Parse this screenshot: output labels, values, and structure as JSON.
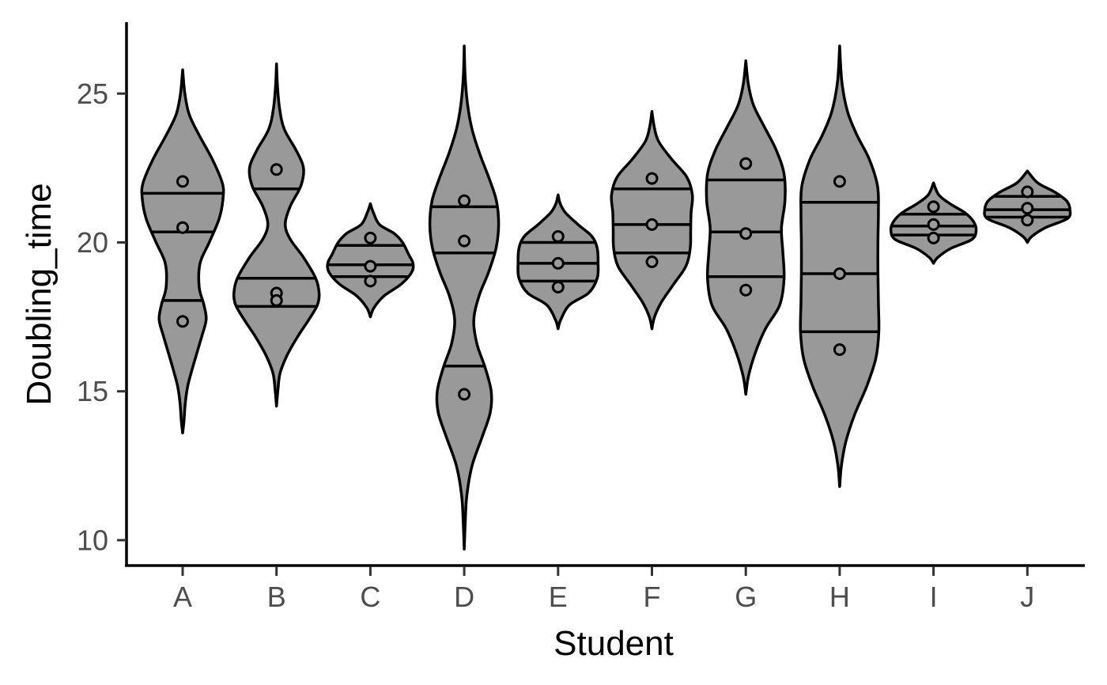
{
  "chart_data": {
    "type": "violin",
    "xlabel": "Student",
    "ylabel": "Doubling_time",
    "ylim": [
      9.2,
      27.4
    ],
    "y_ticks": [
      10,
      15,
      20,
      25
    ],
    "grid": false,
    "legend": "none",
    "colors": {
      "fill": "#999999",
      "outline": "#000000",
      "point_fill": "#999999"
    },
    "categories": [
      "A",
      "B",
      "C",
      "D",
      "E",
      "F",
      "G",
      "H",
      "I",
      "J"
    ],
    "groups": [
      {
        "category": "A",
        "points": [
          22.05,
          20.5,
          17.35
        ],
        "quantiles": [
          18.05,
          20.35,
          21.65
        ],
        "range": [
          13.6,
          25.8
        ],
        "density": [
          [
            13.6,
            0.0
          ],
          [
            14.0,
            0.03
          ],
          [
            14.6,
            0.06
          ],
          [
            15.2,
            0.12
          ],
          [
            16.0,
            0.27
          ],
          [
            16.8,
            0.43
          ],
          [
            17.4,
            0.54
          ],
          [
            17.9,
            0.49
          ],
          [
            18.5,
            0.38
          ],
          [
            19.3,
            0.4
          ],
          [
            20.0,
            0.61
          ],
          [
            20.8,
            0.84
          ],
          [
            21.5,
            0.93
          ],
          [
            22.0,
            0.91
          ],
          [
            22.8,
            0.68
          ],
          [
            23.6,
            0.38
          ],
          [
            24.3,
            0.15
          ],
          [
            25.0,
            0.05
          ],
          [
            25.8,
            0.0
          ]
        ]
      },
      {
        "category": "B",
        "points": [
          22.45,
          18.3,
          18.05
        ],
        "quantiles": [
          17.85,
          18.8,
          21.8
        ],
        "range": [
          14.5,
          26.0
        ],
        "density": [
          [
            14.5,
            0.0
          ],
          [
            15.0,
            0.03
          ],
          [
            15.6,
            0.08
          ],
          [
            16.2,
            0.24
          ],
          [
            16.8,
            0.47
          ],
          [
            17.4,
            0.74
          ],
          [
            17.9,
            0.94
          ],
          [
            18.3,
            0.98
          ],
          [
            18.8,
            0.9
          ],
          [
            19.5,
            0.62
          ],
          [
            20.1,
            0.32
          ],
          [
            20.6,
            0.2
          ],
          [
            21.2,
            0.31
          ],
          [
            21.9,
            0.56
          ],
          [
            22.5,
            0.62
          ],
          [
            23.1,
            0.45
          ],
          [
            23.8,
            0.18
          ],
          [
            24.5,
            0.07
          ],
          [
            25.3,
            0.02
          ],
          [
            26.0,
            0.0
          ]
        ]
      },
      {
        "category": "C",
        "points": [
          20.15,
          19.2,
          18.7
        ],
        "quantiles": [
          18.85,
          19.25,
          19.9
        ],
        "range": [
          17.5,
          21.3
        ],
        "density": [
          [
            17.5,
            0.0
          ],
          [
            17.8,
            0.08
          ],
          [
            18.2,
            0.31
          ],
          [
            18.6,
            0.71
          ],
          [
            19.0,
            0.95
          ],
          [
            19.3,
            0.98
          ],
          [
            19.6,
            0.88
          ],
          [
            20.0,
            0.74
          ],
          [
            20.3,
            0.55
          ],
          [
            20.6,
            0.21
          ],
          [
            21.0,
            0.07
          ],
          [
            21.3,
            0.0
          ]
        ]
      },
      {
        "category": "D",
        "points": [
          21.4,
          20.05,
          14.9
        ],
        "quantiles": [
          15.85,
          19.65,
          21.2
        ],
        "range": [
          9.7,
          26.6
        ],
        "density": [
          [
            9.7,
            0.0
          ],
          [
            10.5,
            0.02
          ],
          [
            11.5,
            0.06
          ],
          [
            12.5,
            0.18
          ],
          [
            13.5,
            0.42
          ],
          [
            14.3,
            0.6
          ],
          [
            15.0,
            0.62
          ],
          [
            15.8,
            0.48
          ],
          [
            16.6,
            0.29
          ],
          [
            17.4,
            0.22
          ],
          [
            18.2,
            0.34
          ],
          [
            19.0,
            0.56
          ],
          [
            19.8,
            0.73
          ],
          [
            20.6,
            0.79
          ],
          [
            21.4,
            0.74
          ],
          [
            22.2,
            0.56
          ],
          [
            23.0,
            0.35
          ],
          [
            23.8,
            0.18
          ],
          [
            24.6,
            0.08
          ],
          [
            25.6,
            0.02
          ],
          [
            26.6,
            0.0
          ]
        ]
      },
      {
        "category": "E",
        "points": [
          20.2,
          19.3,
          18.5
        ],
        "quantiles": [
          18.7,
          19.3,
          20.0
        ],
        "range": [
          17.1,
          21.6
        ],
        "density": [
          [
            17.1,
            0.0
          ],
          [
            17.4,
            0.06
          ],
          [
            17.9,
            0.26
          ],
          [
            18.3,
            0.7
          ],
          [
            18.8,
            0.9
          ],
          [
            19.3,
            0.92
          ],
          [
            19.8,
            0.9
          ],
          [
            20.2,
            0.78
          ],
          [
            20.6,
            0.46
          ],
          [
            21.0,
            0.17
          ],
          [
            21.3,
            0.05
          ],
          [
            21.6,
            0.0
          ]
        ]
      },
      {
        "category": "F",
        "points": [
          22.15,
          20.6,
          19.35
        ],
        "quantiles": [
          19.65,
          20.6,
          21.8
        ],
        "range": [
          17.1,
          24.4
        ],
        "density": [
          [
            17.1,
            0.0
          ],
          [
            17.5,
            0.06
          ],
          [
            18.0,
            0.22
          ],
          [
            18.6,
            0.5
          ],
          [
            19.2,
            0.78
          ],
          [
            19.8,
            0.88
          ],
          [
            20.4,
            0.89
          ],
          [
            21.0,
            0.9
          ],
          [
            21.6,
            0.93
          ],
          [
            22.2,
            0.8
          ],
          [
            22.8,
            0.45
          ],
          [
            23.4,
            0.15
          ],
          [
            23.9,
            0.05
          ],
          [
            24.4,
            0.0
          ]
        ]
      },
      {
        "category": "G",
        "points": [
          22.65,
          20.3,
          18.4
        ],
        "quantiles": [
          18.85,
          20.35,
          22.1
        ],
        "range": [
          14.9,
          26.1
        ],
        "density": [
          [
            14.9,
            0.0
          ],
          [
            15.5,
            0.06
          ],
          [
            16.3,
            0.22
          ],
          [
            17.1,
            0.45
          ],
          [
            17.9,
            0.78
          ],
          [
            18.8,
            0.88
          ],
          [
            19.7,
            0.85
          ],
          [
            20.5,
            0.82
          ],
          [
            21.4,
            0.9
          ],
          [
            22.3,
            0.88
          ],
          [
            23.1,
            0.7
          ],
          [
            23.9,
            0.42
          ],
          [
            24.6,
            0.18
          ],
          [
            25.3,
            0.06
          ],
          [
            26.1,
            0.0
          ]
        ]
      },
      {
        "category": "H",
        "points": [
          22.05,
          18.95,
          16.4
        ],
        "quantiles": [
          17.0,
          18.95,
          21.35
        ],
        "range": [
          11.8,
          26.6
        ],
        "density": [
          [
            11.8,
            0.0
          ],
          [
            12.5,
            0.04
          ],
          [
            13.3,
            0.14
          ],
          [
            14.2,
            0.34
          ],
          [
            15.2,
            0.63
          ],
          [
            16.1,
            0.83
          ],
          [
            17.0,
            0.9
          ],
          [
            18.0,
            0.89
          ],
          [
            19.0,
            0.88
          ],
          [
            20.0,
            0.88
          ],
          [
            21.0,
            0.89
          ],
          [
            21.9,
            0.87
          ],
          [
            22.8,
            0.68
          ],
          [
            23.6,
            0.4
          ],
          [
            24.4,
            0.18
          ],
          [
            25.4,
            0.05
          ],
          [
            26.6,
            0.0
          ]
        ]
      },
      {
        "category": "I",
        "points": [
          21.2,
          20.6,
          20.15
        ],
        "quantiles": [
          20.25,
          20.55,
          20.95
        ],
        "range": [
          19.3,
          22.0
        ],
        "density": [
          [
            19.3,
            0.0
          ],
          [
            19.5,
            0.1
          ],
          [
            19.8,
            0.4
          ],
          [
            20.1,
            0.88
          ],
          [
            20.4,
            0.98
          ],
          [
            20.7,
            0.92
          ],
          [
            21.0,
            0.72
          ],
          [
            21.3,
            0.38
          ],
          [
            21.6,
            0.12
          ],
          [
            22.0,
            0.0
          ]
        ]
      },
      {
        "category": "J",
        "points": [
          21.7,
          21.15,
          20.75
        ],
        "quantiles": [
          20.85,
          21.1,
          21.55
        ],
        "range": [
          20.0,
          22.4
        ],
        "density": [
          [
            20.0,
            0.0
          ],
          [
            20.2,
            0.1
          ],
          [
            20.5,
            0.42
          ],
          [
            20.8,
            0.92
          ],
          [
            21.1,
            0.98
          ],
          [
            21.4,
            0.9
          ],
          [
            21.7,
            0.62
          ],
          [
            22.0,
            0.24
          ],
          [
            22.4,
            0.0
          ]
        ]
      }
    ]
  }
}
